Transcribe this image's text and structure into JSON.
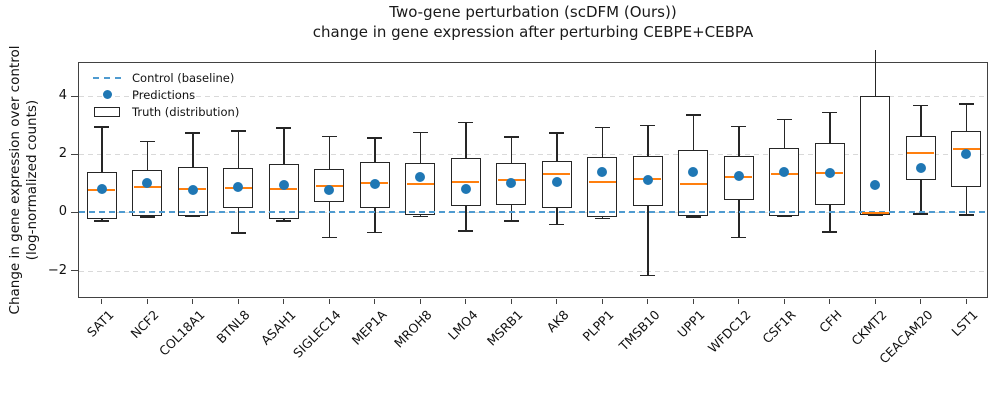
{
  "chart_data": {
    "type": "boxplot",
    "title": "Two-gene perturbation (scDFM (Ours))",
    "subtitle": "change in gene expression after perturbing CEBPE+CEBPA",
    "ylabel_line1": "Change in gene expression over control",
    "ylabel_line2": "(log-normalized counts)",
    "ylim": [
      -2.98,
      5.15
    ],
    "yticks": [
      4,
      2,
      0,
      -2
    ],
    "grid": {
      "axis": "y",
      "style": "dashed",
      "color": "#d9d9d9"
    },
    "control_baseline": {
      "value": 0,
      "style": "dashed",
      "color": "#4f9bd0"
    },
    "legend": [
      {
        "label": "Control (baseline)",
        "marker": "dashed-line",
        "color": "#4f9bd0"
      },
      {
        "label": "Predictions",
        "marker": "dot",
        "color": "#1f77b4"
      },
      {
        "label": "Truth (distribution)",
        "marker": "box",
        "color": "#262626"
      }
    ],
    "colors": {
      "prediction_dot": "#1f77b4",
      "median_line": "#ff7f0e",
      "box_line": "#262626",
      "control_line": "#4f9bd0",
      "gridline": "#d9d9d9",
      "spine": "#424242"
    },
    "categories": [
      "SAT1",
      "NCF2",
      "COL18A1",
      "BTNL8",
      "ASAH1",
      "SIGLEC14",
      "MEP1A",
      "MROH8",
      "LMO4",
      "MSRB1",
      "AK8",
      "PLPP1",
      "TMSB10",
      "UPP1",
      "WFDC12",
      "CSF1R",
      "CFH",
      "CKMT2",
      "CEACAM20",
      "LST1"
    ],
    "series": [
      {
        "name": "Predictions",
        "type": "scatter",
        "values": [
          0.82,
          1.0,
          0.76,
          0.88,
          0.95,
          0.78,
          0.97,
          1.22,
          0.82,
          1.0,
          1.05,
          1.4,
          1.12,
          1.38,
          1.25,
          1.38,
          1.35,
          0.95,
          1.55,
          2.0
        ]
      },
      {
        "name": "Truth (distribution)",
        "type": "box",
        "boxes": [
          {
            "gene": "SAT1",
            "whislo": -0.3,
            "q1": -0.22,
            "med": 0.76,
            "q3": 1.4,
            "whishi": 2.95,
            "cap_high": true
          },
          {
            "gene": "NCF2",
            "whislo": -0.15,
            "q1": -0.11,
            "med": 0.89,
            "q3": 1.45,
            "whishi": 2.44,
            "cap_high": true
          },
          {
            "gene": "COL18A1",
            "whislo": -0.14,
            "q1": -0.11,
            "med": 0.81,
            "q3": 1.57,
            "whishi": 2.73,
            "cap_high": true
          },
          {
            "gene": "BTNL8",
            "whislo": -0.71,
            "q1": 0.15,
            "med": 0.86,
            "q3": 1.54,
            "whishi": 2.81,
            "cap_high": true
          },
          {
            "gene": "ASAH1",
            "whislo": -0.3,
            "q1": -0.22,
            "med": 0.8,
            "q3": 1.66,
            "whishi": 2.91,
            "cap_high": true
          },
          {
            "gene": "SIGLEC14",
            "whislo": -0.86,
            "q1": 0.37,
            "med": 0.91,
            "q3": 1.5,
            "whishi": 2.62,
            "cap_high": true
          },
          {
            "gene": "MEP1A",
            "whislo": -0.69,
            "q1": 0.16,
            "med": 1.02,
            "q3": 1.73,
            "whishi": 2.56,
            "cap_high": true
          },
          {
            "gene": "MROH8",
            "whislo": -0.14,
            "q1": -0.1,
            "med": 0.99,
            "q3": 1.71,
            "whishi": 2.76,
            "cap_high": true
          },
          {
            "gene": "LMO4",
            "whislo": -0.63,
            "q1": 0.22,
            "med": 1.05,
            "q3": 1.88,
            "whishi": 3.1,
            "cap_high": true
          },
          {
            "gene": "MSRB1",
            "whislo": -0.29,
            "q1": 0.25,
            "med": 1.11,
            "q3": 1.71,
            "whishi": 2.6,
            "cap_high": true
          },
          {
            "gene": "AK8",
            "whislo": -0.41,
            "q1": 0.16,
            "med": 1.31,
            "q3": 1.77,
            "whishi": 2.74,
            "cap_high": true
          },
          {
            "gene": "PLPP1",
            "whislo": -0.2,
            "q1": -0.16,
            "med": 1.04,
            "q3": 1.92,
            "whishi": 2.93,
            "cap_high": true
          },
          {
            "gene": "TMSB10",
            "whislo": -2.17,
            "q1": 0.22,
            "med": 1.14,
            "q3": 1.95,
            "whishi": 3.0,
            "cap_high": true
          },
          {
            "gene": "UPP1",
            "whislo": -0.15,
            "q1": -0.12,
            "med": 0.99,
            "q3": 2.15,
            "whishi": 3.36,
            "cap_high": true
          },
          {
            "gene": "WFDC12",
            "whislo": -0.86,
            "q1": 0.42,
            "med": 1.22,
            "q3": 1.95,
            "whishi": 2.96,
            "cap_high": true
          },
          {
            "gene": "CSF1R",
            "whislo": -0.14,
            "q1": -0.11,
            "med": 1.32,
            "q3": 2.23,
            "whishi": 3.2,
            "cap_high": true
          },
          {
            "gene": "CFH",
            "whislo": -0.68,
            "q1": 0.27,
            "med": 1.35,
            "q3": 2.38,
            "whishi": 3.45,
            "cap_high": true
          },
          {
            "gene": "CKMT2",
            "whislo": -0.1,
            "q1": -0.08,
            "med": -0.02,
            "q3": 4.03,
            "whishi": 5.6,
            "cap_high": false
          },
          {
            "gene": "CEACAM20",
            "whislo": -0.05,
            "q1": 1.12,
            "med": 2.06,
            "q3": 2.63,
            "whishi": 3.68,
            "cap_high": true
          },
          {
            "gene": "LST1",
            "whislo": -0.08,
            "q1": 0.89,
            "med": 2.2,
            "q3": 2.8,
            "whishi": 3.74,
            "cap_high": true
          }
        ]
      }
    ]
  }
}
